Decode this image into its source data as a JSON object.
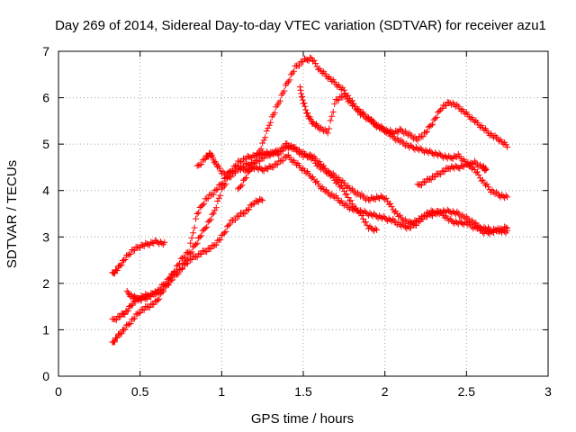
{
  "chart_data": {
    "type": "scatter",
    "title": "Day 269 of 2014, Sidereal Day-to-day VTEC variation (SDTVAR) for receiver azu1",
    "xlabel": "GPS time / hours",
    "ylabel": "SDTVAR / TECUs",
    "xlim": [
      0,
      3
    ],
    "ylim": [
      0,
      7
    ],
    "xticks": [
      "0",
      "0.5",
      "1",
      "1.5",
      "2",
      "2.5",
      "3"
    ],
    "yticks": [
      "0",
      "1",
      "2",
      "3",
      "4",
      "5",
      "6",
      "7"
    ],
    "grid": true,
    "marker": "+",
    "color": "#ff0000",
    "series": [
      {
        "name": "s1",
        "points": [
          [
            0.33,
            2.2
          ],
          [
            0.36,
            2.3
          ],
          [
            0.4,
            2.5
          ],
          [
            0.45,
            2.7
          ],
          [
            0.5,
            2.8
          ],
          [
            0.55,
            2.85
          ],
          [
            0.6,
            2.9
          ],
          [
            0.65,
            2.85
          ]
        ]
      },
      {
        "name": "s2",
        "points": [
          [
            0.33,
            0.7
          ],
          [
            0.36,
            0.85
          ],
          [
            0.4,
            1.0
          ],
          [
            0.45,
            1.2
          ],
          [
            0.5,
            1.4
          ],
          [
            0.55,
            1.5
          ],
          [
            0.6,
            1.6
          ],
          [
            0.65,
            1.9
          ],
          [
            0.7,
            2.2
          ],
          [
            0.75,
            2.3
          ],
          [
            0.8,
            2.5
          ],
          [
            0.85,
            2.6
          ],
          [
            0.9,
            2.7
          ],
          [
            0.95,
            2.8
          ],
          [
            1.0,
            3.0
          ],
          [
            1.05,
            3.3
          ],
          [
            1.1,
            3.45
          ],
          [
            1.15,
            3.55
          ],
          [
            1.2,
            3.75
          ],
          [
            1.25,
            3.8
          ]
        ]
      },
      {
        "name": "s3",
        "points": [
          [
            0.33,
            1.2
          ],
          [
            0.38,
            1.3
          ],
          [
            0.42,
            1.4
          ],
          [
            0.46,
            1.6
          ],
          [
            0.5,
            1.7
          ],
          [
            0.55,
            1.75
          ],
          [
            0.6,
            1.8
          ],
          [
            0.65,
            1.9
          ],
          [
            0.7,
            2.1
          ],
          [
            0.75,
            2.3
          ],
          [
            0.8,
            2.6
          ],
          [
            0.85,
            2.9
          ],
          [
            0.9,
            3.2
          ],
          [
            0.95,
            3.5
          ],
          [
            1.0,
            4.0
          ],
          [
            1.05,
            4.35
          ],
          [
            1.1,
            4.5
          ],
          [
            1.15,
            4.45
          ],
          [
            1.2,
            4.5
          ],
          [
            1.25,
            4.45
          ],
          [
            1.3,
            4.5
          ],
          [
            1.35,
            4.6
          ],
          [
            1.4,
            4.75
          ],
          [
            1.45,
            4.6
          ],
          [
            1.5,
            4.45
          ],
          [
            1.55,
            4.3
          ],
          [
            1.6,
            4.1
          ],
          [
            1.65,
            3.95
          ],
          [
            1.7,
            3.85
          ],
          [
            1.75,
            3.7
          ],
          [
            1.8,
            3.6
          ],
          [
            1.85,
            3.55
          ],
          [
            1.9,
            3.5
          ],
          [
            1.95,
            3.45
          ],
          [
            2.0,
            3.4
          ],
          [
            2.05,
            3.35
          ],
          [
            2.1,
            3.25
          ],
          [
            2.15,
            3.2
          ],
          [
            2.2,
            3.3
          ],
          [
            2.25,
            3.5
          ],
          [
            2.3,
            3.55
          ],
          [
            2.35,
            3.5
          ],
          [
            2.4,
            3.35
          ],
          [
            2.45,
            3.3
          ],
          [
            2.5,
            3.3
          ],
          [
            2.55,
            3.2
          ],
          [
            2.6,
            3.2
          ],
          [
            2.65,
            3.15
          ],
          [
            2.7,
            3.15
          ],
          [
            2.75,
            3.1
          ]
        ]
      },
      {
        "name": "s4",
        "points": [
          [
            0.42,
            1.8
          ],
          [
            0.46,
            1.7
          ],
          [
            0.5,
            1.65
          ],
          [
            0.55,
            1.7
          ],
          [
            0.6,
            1.8
          ],
          [
            0.65,
            2.0
          ],
          [
            0.7,
            2.2
          ],
          [
            0.75,
            2.5
          ],
          [
            0.8,
            2.7
          ],
          [
            0.85,
            3.5
          ],
          [
            0.9,
            3.8
          ],
          [
            0.95,
            3.95
          ],
          [
            1.0,
            4.15
          ],
          [
            1.05,
            4.4
          ],
          [
            1.1,
            4.6
          ],
          [
            1.15,
            4.7
          ],
          [
            1.2,
            4.75
          ],
          [
            1.25,
            4.8
          ],
          [
            1.3,
            4.8
          ],
          [
            1.35,
            4.85
          ],
          [
            1.4,
            5.0
          ],
          [
            1.45,
            4.9
          ],
          [
            1.5,
            4.75
          ],
          [
            1.55,
            4.75
          ],
          [
            1.6,
            4.6
          ],
          [
            1.65,
            4.4
          ],
          [
            1.7,
            4.3
          ],
          [
            1.75,
            4.15
          ],
          [
            1.8,
            4.0
          ],
          [
            1.85,
            3.9
          ],
          [
            1.9,
            3.8
          ],
          [
            1.95,
            3.85
          ],
          [
            2.0,
            3.85
          ],
          [
            2.05,
            3.6
          ],
          [
            2.1,
            3.4
          ],
          [
            2.15,
            3.3
          ],
          [
            2.2,
            3.35
          ],
          [
            2.25,
            3.45
          ],
          [
            2.3,
            3.5
          ],
          [
            2.35,
            3.55
          ],
          [
            2.4,
            3.55
          ],
          [
            2.45,
            3.5
          ],
          [
            2.5,
            3.4
          ],
          [
            2.55,
            3.3
          ],
          [
            2.6,
            3.1
          ],
          [
            2.65,
            3.1
          ],
          [
            2.7,
            3.15
          ],
          [
            2.75,
            3.2
          ]
        ]
      },
      {
        "name": "s5",
        "points": [
          [
            0.85,
            4.5
          ],
          [
            0.9,
            4.7
          ],
          [
            0.93,
            4.8
          ],
          [
            0.96,
            4.6
          ],
          [
            1.0,
            4.4
          ],
          [
            1.05,
            4.3
          ],
          [
            1.1,
            4.45
          ],
          [
            1.15,
            4.55
          ],
          [
            1.2,
            4.6
          ],
          [
            1.25,
            4.7
          ],
          [
            1.3,
            4.8
          ],
          [
            1.35,
            4.8
          ],
          [
            1.4,
            4.95
          ],
          [
            1.45,
            4.9
          ],
          [
            1.5,
            4.8
          ],
          [
            1.55,
            4.7
          ],
          [
            1.6,
            4.5
          ],
          [
            1.65,
            4.4
          ],
          [
            1.7,
            4.2
          ],
          [
            1.75,
            4.0
          ],
          [
            1.8,
            3.7
          ],
          [
            1.85,
            3.5
          ],
          [
            1.9,
            3.2
          ],
          [
            1.95,
            3.15
          ]
        ]
      },
      {
        "name": "s6",
        "points": [
          [
            1.1,
            4.0
          ],
          [
            1.15,
            4.3
          ],
          [
            1.2,
            4.6
          ],
          [
            1.25,
            5.0
          ],
          [
            1.3,
            5.5
          ],
          [
            1.35,
            5.9
          ],
          [
            1.4,
            6.3
          ],
          [
            1.45,
            6.65
          ],
          [
            1.5,
            6.8
          ],
          [
            1.55,
            6.85
          ],
          [
            1.6,
            6.6
          ],
          [
            1.65,
            6.45
          ],
          [
            1.7,
            6.3
          ],
          [
            1.75,
            6.15
          ],
          [
            1.8,
            5.9
          ],
          [
            1.85,
            5.65
          ],
          [
            1.9,
            5.55
          ],
          [
            1.95,
            5.4
          ],
          [
            2.0,
            5.3
          ],
          [
            2.05,
            5.25
          ],
          [
            2.1,
            5.3
          ],
          [
            2.15,
            5.2
          ],
          [
            2.2,
            5.1
          ],
          [
            2.25,
            5.25
          ],
          [
            2.3,
            5.5
          ],
          [
            2.35,
            5.8
          ],
          [
            2.4,
            5.9
          ],
          [
            2.45,
            5.8
          ],
          [
            2.5,
            5.65
          ],
          [
            2.55,
            5.5
          ],
          [
            2.6,
            5.35
          ],
          [
            2.65,
            5.2
          ],
          [
            2.7,
            5.1
          ],
          [
            2.75,
            4.95
          ]
        ]
      },
      {
        "name": "s7",
        "points": [
          [
            1.48,
            6.2
          ],
          [
            1.5,
            5.9
          ],
          [
            1.53,
            5.6
          ],
          [
            1.56,
            5.45
          ],
          [
            1.6,
            5.35
          ],
          [
            1.65,
            5.25
          ],
          [
            1.7,
            5.95
          ],
          [
            1.75,
            6.05
          ],
          [
            1.8,
            5.85
          ],
          [
            1.85,
            5.7
          ],
          [
            1.9,
            5.55
          ],
          [
            1.95,
            5.4
          ],
          [
            2.0,
            5.3
          ],
          [
            2.05,
            5.15
          ],
          [
            2.1,
            5.05
          ],
          [
            2.15,
            4.95
          ],
          [
            2.2,
            4.9
          ],
          [
            2.25,
            4.85
          ],
          [
            2.3,
            4.8
          ],
          [
            2.35,
            4.75
          ],
          [
            2.4,
            4.7
          ],
          [
            2.45,
            4.75
          ],
          [
            2.5,
            4.6
          ],
          [
            2.55,
            4.45
          ],
          [
            2.6,
            4.2
          ],
          [
            2.65,
            4.0
          ],
          [
            2.7,
            3.9
          ],
          [
            2.75,
            3.85
          ]
        ]
      },
      {
        "name": "s8",
        "points": [
          [
            2.2,
            4.1
          ],
          [
            2.25,
            4.2
          ],
          [
            2.3,
            4.3
          ],
          [
            2.35,
            4.4
          ],
          [
            2.4,
            4.5
          ],
          [
            2.45,
            4.5
          ],
          [
            2.5,
            4.55
          ],
          [
            2.55,
            4.6
          ],
          [
            2.6,
            4.5
          ],
          [
            2.62,
            4.45
          ]
        ]
      }
    ]
  }
}
